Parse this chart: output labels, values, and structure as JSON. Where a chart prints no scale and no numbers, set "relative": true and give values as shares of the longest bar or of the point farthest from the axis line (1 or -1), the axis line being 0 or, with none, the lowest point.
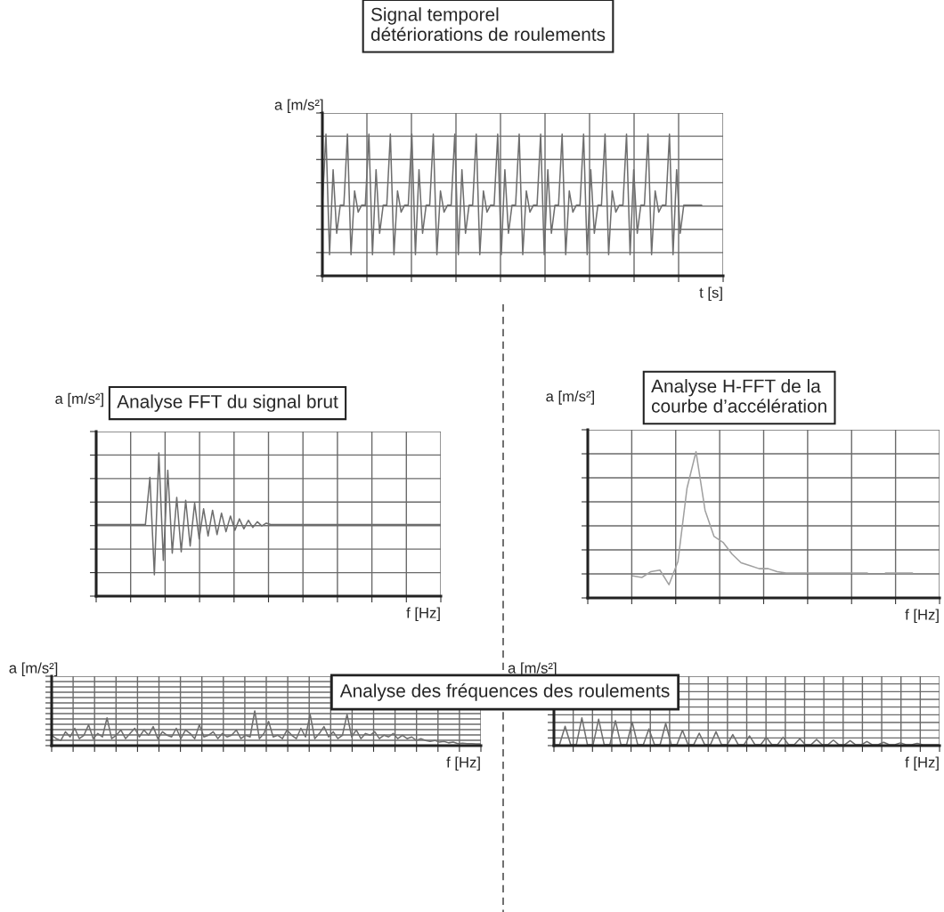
{
  "chart_data": [
    {
      "type": "line",
      "relative": true,
      "title": "Signal temporel\ndétériorations de roulements",
      "ylabel": "a [m/s²]",
      "xlabel": "t [s]",
      "grid": true,
      "tick_labels": false,
      "categories": [
        null,
        null,
        null,
        null,
        null,
        null,
        null,
        null,
        null,
        null,
        null,
        null,
        null,
        null,
        null,
        null,
        null,
        null,
        null,
        null,
        null,
        null,
        null,
        null,
        null,
        null,
        null,
        null,
        null,
        null,
        null,
        null,
        null,
        null,
        null,
        null,
        null,
        null,
        null,
        null,
        null,
        null,
        null,
        null,
        null,
        null,
        null,
        null,
        null,
        null,
        null,
        null,
        null,
        null,
        null,
        null,
        null,
        null,
        null,
        null,
        null,
        null,
        null,
        null,
        null,
        null,
        null,
        null,
        null,
        null,
        null,
        null,
        null,
        null,
        null,
        null,
        null,
        null,
        null,
        null,
        null,
        null,
        null,
        null,
        null,
        null,
        null,
        null,
        null,
        null,
        null,
        null,
        null,
        null,
        null,
        null,
        null,
        null,
        null,
        null,
        null,
        null,
        null,
        null,
        null,
        null,
        null,
        null,
        null,
        null,
        null,
        null,
        null
      ],
      "series": [
        {
          "color": "#6e6e6e",
          "values": [
            0.5,
            1,
            0.15,
            0.75,
            0.3,
            0.5,
            0.5,
            1,
            0.15,
            0.6,
            0.45,
            0.5,
            0.5,
            1,
            0.15,
            0.75,
            0.3,
            0.5,
            0.5,
            1,
            0.15,
            0.6,
            0.45,
            0.5,
            0.5,
            1,
            0.15,
            0.75,
            0.3,
            0.5,
            0.5,
            1,
            0.15,
            0.6,
            0.45,
            0.5,
            0.5,
            1,
            0.15,
            0.75,
            0.3,
            0.5,
            0.5,
            1,
            0.15,
            0.6,
            0.45,
            0.5,
            0.5,
            1,
            0.15,
            0.75,
            0.3,
            0.5,
            0.5,
            1,
            0.15,
            0.6,
            0.45,
            0.5,
            0.5,
            1,
            0.15,
            0.75,
            0.3,
            0.5,
            0.5,
            1,
            0.15,
            0.6,
            0.45,
            0.5,
            0.5,
            1,
            0.15,
            0.75,
            0.3,
            0.5,
            0.5,
            1,
            0.15,
            0.6,
            0.45,
            0.5,
            0.5,
            1,
            0.15,
            0.75,
            0.3,
            0.5,
            0.5,
            1,
            0.15,
            0.6,
            0.45,
            0.5,
            0.5,
            1,
            0.15,
            0.75,
            0.3,
            0.5,
            0.5,
            0.5,
            0.5,
            0.5,
            0.5,
            null,
            null,
            null,
            null,
            null,
            null
          ]
        }
      ]
    },
    {
      "type": "line",
      "relative": true,
      "title": "Analyse FFT du signal brut",
      "ylabel": "a [m/s²]",
      "xlabel": "f [Hz]",
      "grid": true,
      "tick_labels": false,
      "categories": [
        null,
        null,
        null,
        null,
        null,
        null,
        null,
        null,
        null,
        null,
        null,
        null,
        null,
        null,
        null,
        null,
        null,
        null,
        null,
        null,
        null,
        null,
        null,
        null,
        null,
        null,
        null,
        null,
        null,
        null,
        null,
        null,
        null,
        null,
        null,
        null,
        null,
        null,
        null,
        null,
        null,
        null,
        null,
        null,
        null,
        null,
        null,
        null,
        null,
        null,
        null,
        null,
        null,
        null,
        null,
        null,
        null,
        null,
        null,
        null,
        null,
        null,
        null,
        null,
        null,
        null,
        null,
        null,
        null,
        null,
        null,
        null,
        null,
        null,
        null,
        null,
        null,
        null
      ],
      "series": [
        {
          "color": "#6e6e6e",
          "values": [
            0.5,
            0.5,
            0.5,
            0.5,
            0.5,
            0.5,
            0.5,
            0.5,
            0.5,
            0.5,
            0.5,
            0.5,
            0.83,
            0.15,
            1.0,
            0.25,
            0.88,
            0.3,
            0.69,
            0.31,
            0.67,
            0.35,
            0.65,
            0.4,
            0.61,
            0.42,
            0.6,
            0.43,
            0.58,
            0.45,
            0.56,
            0.46,
            0.54,
            0.47,
            0.53,
            0.48,
            0.52,
            0.49,
            0.51,
            0.5,
            0.5,
            0.5,
            0.5,
            0.5,
            0.5,
            0.5,
            0.5,
            0.5,
            0.5,
            0.5,
            0.5,
            0.5,
            0.5,
            0.5,
            0.5,
            0.5,
            0.5,
            0.5,
            0.5,
            0.5,
            0.5,
            0.5,
            0.5,
            0.5,
            0.5,
            0.5,
            0.5,
            0.5,
            0.5,
            0.5,
            0.5,
            0.5,
            0.5,
            0.5,
            0.5,
            0.5,
            0.5,
            0.5
          ]
        }
      ]
    },
    {
      "type": "line",
      "relative": true,
      "title": "Analyse H-FFT de la\ncourbe d’accélération",
      "ylabel": "a [m/s²]",
      "xlabel": "f [Hz]",
      "grid": true,
      "tick_labels": false,
      "categories": [
        null,
        null,
        null,
        null,
        null,
        null,
        null,
        null,
        null,
        null,
        null,
        null,
        null,
        null,
        null,
        null,
        null,
        null,
        null,
        null,
        null,
        null,
        null,
        null,
        null,
        null,
        null,
        null,
        null,
        null,
        null,
        null,
        null,
        null,
        null,
        null,
        null,
        null,
        null,
        null
      ],
      "series": [
        {
          "color": "#a0a0a0",
          "values": [
            null,
            null,
            null,
            null,
            null,
            0.15,
            0.14,
            0.18,
            0.19,
            0.09,
            0.25,
            0.75,
            1.0,
            0.6,
            0.42,
            0.38,
            0.3,
            0.24,
            0.22,
            0.2,
            0.2,
            0.18,
            0.17,
            0.17,
            0.17,
            0.17,
            0.17,
            0.17,
            0.17,
            0.17,
            0.17,
            0.17,
            null,
            null,
            null,
            null,
            null,
            null,
            null,
            null
          ]
        },
        {
          "color": "#a0a0a0",
          "values": [
            null,
            null,
            null,
            null,
            null,
            null,
            null,
            null,
            null,
            null,
            null,
            null,
            null,
            null,
            null,
            null,
            null,
            null,
            null,
            null,
            null,
            null,
            null,
            null,
            null,
            null,
            null,
            null,
            null,
            null,
            null,
            null,
            null,
            0.17,
            0.17,
            0.17,
            0.17,
            null,
            null,
            null
          ]
        }
      ]
    },
    {
      "type": "line",
      "relative": true,
      "title": "Analyse des fréquences des roulements",
      "ylabel": "a [m/s²]",
      "xlabel": "f [Hz]",
      "grid": true,
      "tick_labels": false,
      "categories": [
        null,
        null,
        null,
        null,
        null,
        null,
        null,
        null,
        null,
        null,
        null,
        null,
        null,
        null,
        null,
        null,
        null,
        null,
        null,
        null,
        null,
        null,
        null,
        null,
        null,
        null,
        null,
        null,
        null,
        null,
        null,
        null,
        null,
        null,
        null,
        null,
        null,
        null,
        null,
        null,
        null,
        null,
        null,
        null,
        null,
        null,
        null,
        null,
        null,
        null,
        null,
        null,
        null,
        null,
        null,
        null,
        null,
        null,
        null,
        null,
        null,
        null,
        null,
        null,
        null,
        null,
        null,
        null,
        null,
        null,
        null,
        null,
        null,
        null,
        null,
        null,
        null,
        null,
        null,
        null,
        null,
        null,
        null,
        null,
        null,
        null,
        null,
        null,
        null,
        null,
        null,
        null,
        null,
        null
      ],
      "series": [
        {
          "color": "#6e6e6e",
          "values": [
            0.3,
            0.2,
            0.15,
            0.4,
            0.25,
            0.5,
            0.2,
            0.3,
            0.6,
            0.2,
            0.35,
            0.25,
            0.8,
            0.2,
            0.3,
            0.45,
            0.2,
            0.35,
            0.5,
            0.25,
            0.45,
            0.3,
            0.55,
            0.2,
            0.4,
            0.3,
            0.25,
            0.5,
            0.2,
            0.45,
            0.35,
            0.2,
            0.6,
            0.25,
            0.3,
            0.4,
            0.2,
            0.35,
            0.25,
            0.3,
            0.45,
            0.2,
            0.3,
            0.25,
            1.0,
            0.2,
            0.35,
            0.7,
            0.25,
            0.3,
            0.2,
            0.45,
            0.3,
            0.2,
            0.5,
            0.25,
            0.9,
            0.2,
            0.35,
            0.55,
            0.25,
            0.4,
            0.2,
            0.3,
            0.9,
            0.25,
            0.45,
            0.2,
            0.35,
            0.3,
            0.4,
            0.2,
            0.3,
            0.25,
            0.35,
            0.2,
            0.3,
            0.2,
            0.25,
            0.15,
            0.2,
            0.15,
            0.12,
            0.15,
            0.1,
            0.12,
            0.08,
            0.1,
            0.06,
            0.07,
            0.06,
            0.06,
            0.05,
            0.05
          ]
        }
      ]
    },
    {
      "type": "line",
      "relative": true,
      "xlabel": "f [Hz]",
      "ylabel": "a [m/s²]",
      "grid": true,
      "tick_labels": false,
      "categories": [
        null,
        null,
        null,
        null,
        null,
        null,
        null,
        null,
        null,
        null,
        null,
        null,
        null,
        null,
        null,
        null,
        null,
        null,
        null,
        null,
        null,
        null,
        null,
        null,
        null,
        null,
        null,
        null,
        null,
        null,
        null,
        null,
        null,
        null,
        null,
        null,
        null,
        null,
        null,
        null,
        null,
        null,
        null,
        null,
        null,
        null,
        null,
        null,
        null,
        null,
        null,
        null,
        null,
        null,
        null,
        null,
        null,
        null,
        null,
        null,
        null,
        null,
        null,
        null,
        null,
        null,
        null,
        null,
        null,
        null
      ],
      "series": [
        {
          "color": "#6e6e6e",
          "values": [
            0.03,
            0.03,
            0.7,
            0.03,
            0.03,
            1.0,
            0.03,
            0.03,
            0.95,
            0.03,
            0.03,
            0.9,
            0.03,
            0.03,
            0.85,
            0.03,
            0.03,
            0.6,
            0.03,
            0.03,
            0.8,
            0.03,
            0.03,
            0.55,
            0.03,
            0.03,
            0.45,
            0.03,
            0.03,
            0.5,
            0.03,
            0.03,
            0.4,
            0.03,
            0.03,
            0.35,
            0.03,
            0.03,
            0.3,
            0.03,
            0.03,
            0.3,
            0.03,
            0.03,
            0.25,
            0.03,
            0.03,
            0.22,
            0.03,
            0.03,
            0.2,
            0.03,
            0.03,
            0.18,
            0.03,
            0.03,
            0.15,
            0.03,
            0.03,
            0.12,
            0.03,
            0.03,
            0.1,
            0.03,
            0.03,
            0.08,
            0.03,
            0.03,
            0.03,
            0.03
          ]
        }
      ]
    }
  ]
}
